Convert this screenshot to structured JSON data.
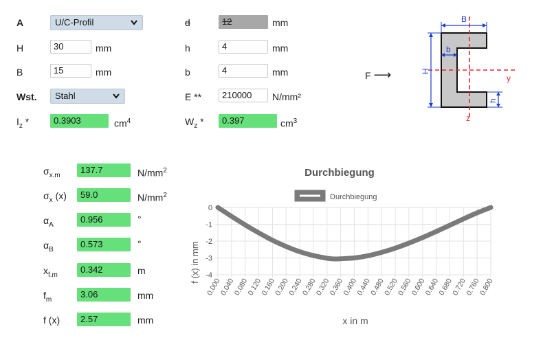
{
  "top": {
    "row1": {
      "a_label": "A",
      "profile_select": "U/C-Profil",
      "d_label": "d",
      "d_value": "12",
      "d_unit": "mm"
    },
    "row2": {
      "H_label": "H",
      "H_value": "30",
      "H_unit": "mm",
      "h_label": "h",
      "h_value": "4",
      "h_unit": "mm"
    },
    "row3": {
      "B_label": "B",
      "B_value": "15",
      "B_unit": "mm",
      "b_label": "b",
      "b_value": "4",
      "b_unit": "mm"
    },
    "row4": {
      "wst_label": "Wst.",
      "material_select": "Stahl",
      "E_label": "E **",
      "E_value": "210000",
      "E_unit": "N/mm²"
    },
    "row5": {
      "Iz_label": "I",
      "Iz_sub": "z",
      "Iz_star": " *",
      "Iz_value": "0.3903",
      "Iz_unit": "cm",
      "Iz_unit_sup": "4",
      "Wz_label": "W",
      "Wz_sub": "z",
      "Wz_star": " *",
      "Wz_value": "0.397",
      "Wz_unit": "cm",
      "Wz_unit_sup": "3"
    }
  },
  "diagram": {
    "force_label": "F",
    "arrow": "⟶",
    "label_B": "B",
    "label_b": "b",
    "label_H": "H",
    "label_h": "h",
    "label_y": "y",
    "label_z": "z",
    "colors": {
      "profile_fill": "#c8c8c8",
      "dim_blue": "#1a3ccc",
      "axis_red": "#e8262d"
    }
  },
  "results": {
    "sxm": {
      "sym": "σ",
      "sub": "x.m",
      "value": "137.7",
      "unit": "N/mm",
      "unit_sup": "2"
    },
    "sx": {
      "sym": "σ",
      "sub": "x",
      "suffix": " (x)",
      "value": "59.0",
      "unit": "N/mm",
      "unit_sup": "2"
    },
    "aA": {
      "sym": "α",
      "sub": "A",
      "value": "0.956",
      "unit": "°"
    },
    "aB": {
      "sym": "α",
      "sub": "B",
      "value": "0.573",
      "unit": "°"
    },
    "xfm": {
      "sym": "x",
      "sub": "f.m",
      "value": "0.342",
      "unit": "m"
    },
    "fm": {
      "sym": "f",
      "sub": "m",
      "value": "3.06",
      "unit": "mm"
    },
    "fx": {
      "sym": "f (x)",
      "value": "2.57",
      "unit": "mm"
    }
  },
  "chart_data": {
    "type": "line",
    "title": "Durchbiegung",
    "legend": "Durchbiegung",
    "legend_position": "top",
    "xlabel": "x in m",
    "ylabel": "f (x) in mm",
    "x_ticks": [
      "0.000",
      "0.040",
      "0.080",
      "0.120",
      "0.160",
      "0.200",
      "0.240",
      "0.280",
      "0.320",
      "0.360",
      "0.400",
      "0.440",
      "0.480",
      "0.520",
      "0.560",
      "0.600",
      "0.640",
      "0.680",
      "0.720",
      "0.760",
      "0.800"
    ],
    "y_ticks": [
      "0",
      "-1",
      "-2",
      "-3",
      "-4"
    ],
    "xlim": [
      0,
      0.8
    ],
    "ylim": [
      -4,
      0
    ],
    "grid": true,
    "line_color": "#7a7a7a",
    "series": [
      {
        "name": "Durchbiegung",
        "x": [
          0.0,
          0.04,
          0.08,
          0.12,
          0.16,
          0.2,
          0.24,
          0.28,
          0.32,
          0.342,
          0.36,
          0.4,
          0.44,
          0.48,
          0.52,
          0.56,
          0.6,
          0.64,
          0.68,
          0.72,
          0.76,
          0.8
        ],
        "y": [
          0.0,
          -0.53,
          -1.04,
          -1.51,
          -1.95,
          -2.32,
          -2.63,
          -2.86,
          -3.02,
          -3.06,
          -3.05,
          -3.0,
          -2.87,
          -2.67,
          -2.42,
          -2.12,
          -1.79,
          -1.43,
          -1.06,
          -0.68,
          -0.32,
          0.0
        ]
      }
    ]
  }
}
